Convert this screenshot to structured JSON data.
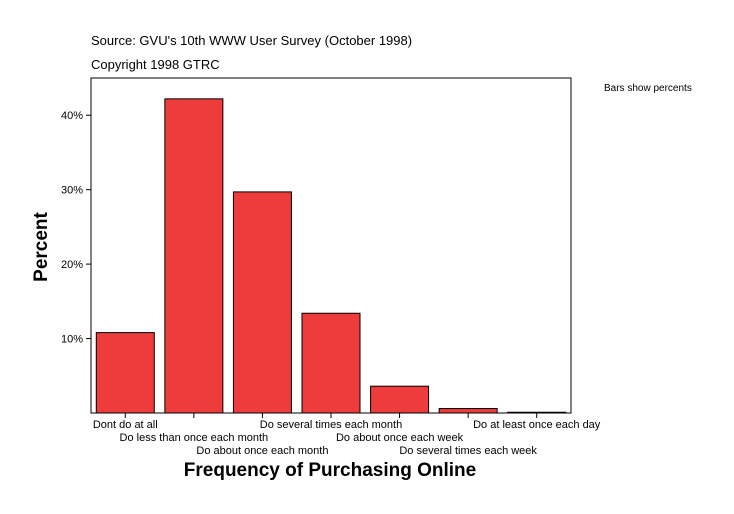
{
  "header": {
    "source": "Source: GVU's 10th WWW User Survey (October 1998)",
    "copyright": "Copyright 1998 GTRC"
  },
  "legend_note": "Bars show percents",
  "chart_data": {
    "type": "bar",
    "title": "",
    "xlabel": "Frequency of Purchasing Online",
    "ylabel": "Percent",
    "categories": [
      "Dont do at all",
      "Do less than once each month",
      "Do about once each month",
      "Do several times each month",
      "Do about once each week",
      "Do several times each week",
      "Do at least once each day"
    ],
    "values": [
      10.8,
      42.2,
      29.7,
      13.4,
      3.6,
      0.6,
      0.1
    ],
    "ylim": [
      0,
      45
    ],
    "yticks": [
      10,
      20,
      30,
      40
    ],
    "ytick_labels": [
      "10%",
      "20%",
      "30%",
      "40%"
    ],
    "bar_color": "#ee3b3b",
    "grid": false
  }
}
